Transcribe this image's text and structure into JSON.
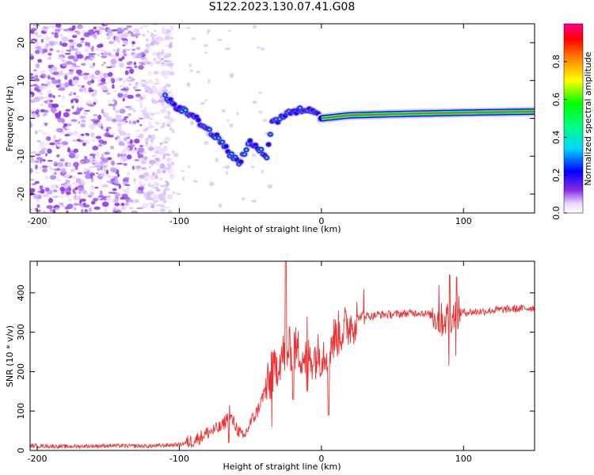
{
  "title": "S122.2023.130.07.41.G08",
  "chart_data": [
    {
      "type": "heatmap",
      "name": "spectrogram",
      "xlabel": "Height of straight line (km)",
      "ylabel": "Frequency (Hz)",
      "xlim": [
        -205,
        150
      ],
      "ylim": [
        -25,
        25
      ],
      "xticks": [
        -200,
        -100,
        0,
        100
      ],
      "yticks": [
        -20,
        -10,
        0,
        10,
        20
      ],
      "colorbar": {
        "label": "Normalized spectral amplitude",
        "range": [
          0.0,
          1.0
        ],
        "ticks": [
          0.0,
          0.2,
          0.4,
          0.6,
          0.8
        ]
      },
      "signal_track": [
        {
          "x": -110,
          "f": 5.5
        },
        {
          "x": -100,
          "f": 2.5
        },
        {
          "x": -90,
          "f": 0.5
        },
        {
          "x": -80,
          "f": -3
        },
        {
          "x": -72,
          "f": -5.5
        },
        {
          "x": -65,
          "f": -9
        },
        {
          "x": -58,
          "f": -12
        },
        {
          "x": -50,
          "f": -6
        },
        {
          "x": -45,
          "f": -8
        },
        {
          "x": -38,
          "f": -10
        },
        {
          "x": -35,
          "f": -1
        },
        {
          "x": -28,
          "f": 0
        },
        {
          "x": -20,
          "f": 2
        },
        {
          "x": -10,
          "f": 2.5
        },
        {
          "x": 0,
          "f": 0
        },
        {
          "x": 20,
          "f": 0.8
        },
        {
          "x": 60,
          "f": 1.2
        },
        {
          "x": 100,
          "f": 1.5
        },
        {
          "x": 150,
          "f": 1.8
        }
      ]
    },
    {
      "type": "line",
      "name": "snr",
      "xlabel": "Height of straight line (km)",
      "ylabel": "SNR (10 * v/v)",
      "xlim": [
        -205,
        150
      ],
      "ylim": [
        0,
        480
      ],
      "xticks": [
        -200,
        -100,
        0,
        100
      ],
      "yticks": [
        0,
        100,
        200,
        300,
        400
      ],
      "series": [
        {
          "name": "SNR",
          "color": "#f03030",
          "x": [
            -205,
            -180,
            -150,
            -120,
            -100,
            -90,
            -80,
            -70,
            -65,
            -60,
            -55,
            -50,
            -45,
            -40,
            -35,
            -30,
            -25,
            -20,
            -15,
            -10,
            -5,
            0,
            5,
            10,
            15,
            20,
            25,
            30,
            35,
            40,
            50,
            60,
            70,
            80,
            85,
            90,
            95,
            100,
            110,
            120,
            130,
            140,
            150
          ],
          "y": [
            12,
            10,
            12,
            11,
            15,
            25,
            45,
            60,
            90,
            60,
            30,
            70,
            100,
            150,
            180,
            230,
            250,
            260,
            250,
            230,
            240,
            245,
            260,
            290,
            305,
            320,
            335,
            345,
            340,
            345,
            345,
            348,
            350,
            340,
            330,
            340,
            345,
            350,
            352,
            355,
            358,
            360,
            362
          ],
          "spikes": [
            {
              "x": -65,
              "hi": 115,
              "lo": 20
            },
            {
              "x": -35,
              "hi": 250,
              "lo": 60
            },
            {
              "x": -25,
              "hi": 480,
              "lo": 110
            },
            {
              "x": -20,
              "hi": 440,
              "lo": 130
            },
            {
              "x": -10,
              "hi": 340,
              "lo": 150
            },
            {
              "x": 5,
              "hi": 330,
              "lo": 90
            },
            {
              "x": 30,
              "hi": 410,
              "lo": 320
            },
            {
              "x": 83,
              "hi": 420,
              "lo": 300
            },
            {
              "x": 90,
              "hi": 445,
              "lo": 215
            },
            {
              "x": 95,
              "hi": 440,
              "lo": 240
            }
          ]
        }
      ]
    }
  ]
}
